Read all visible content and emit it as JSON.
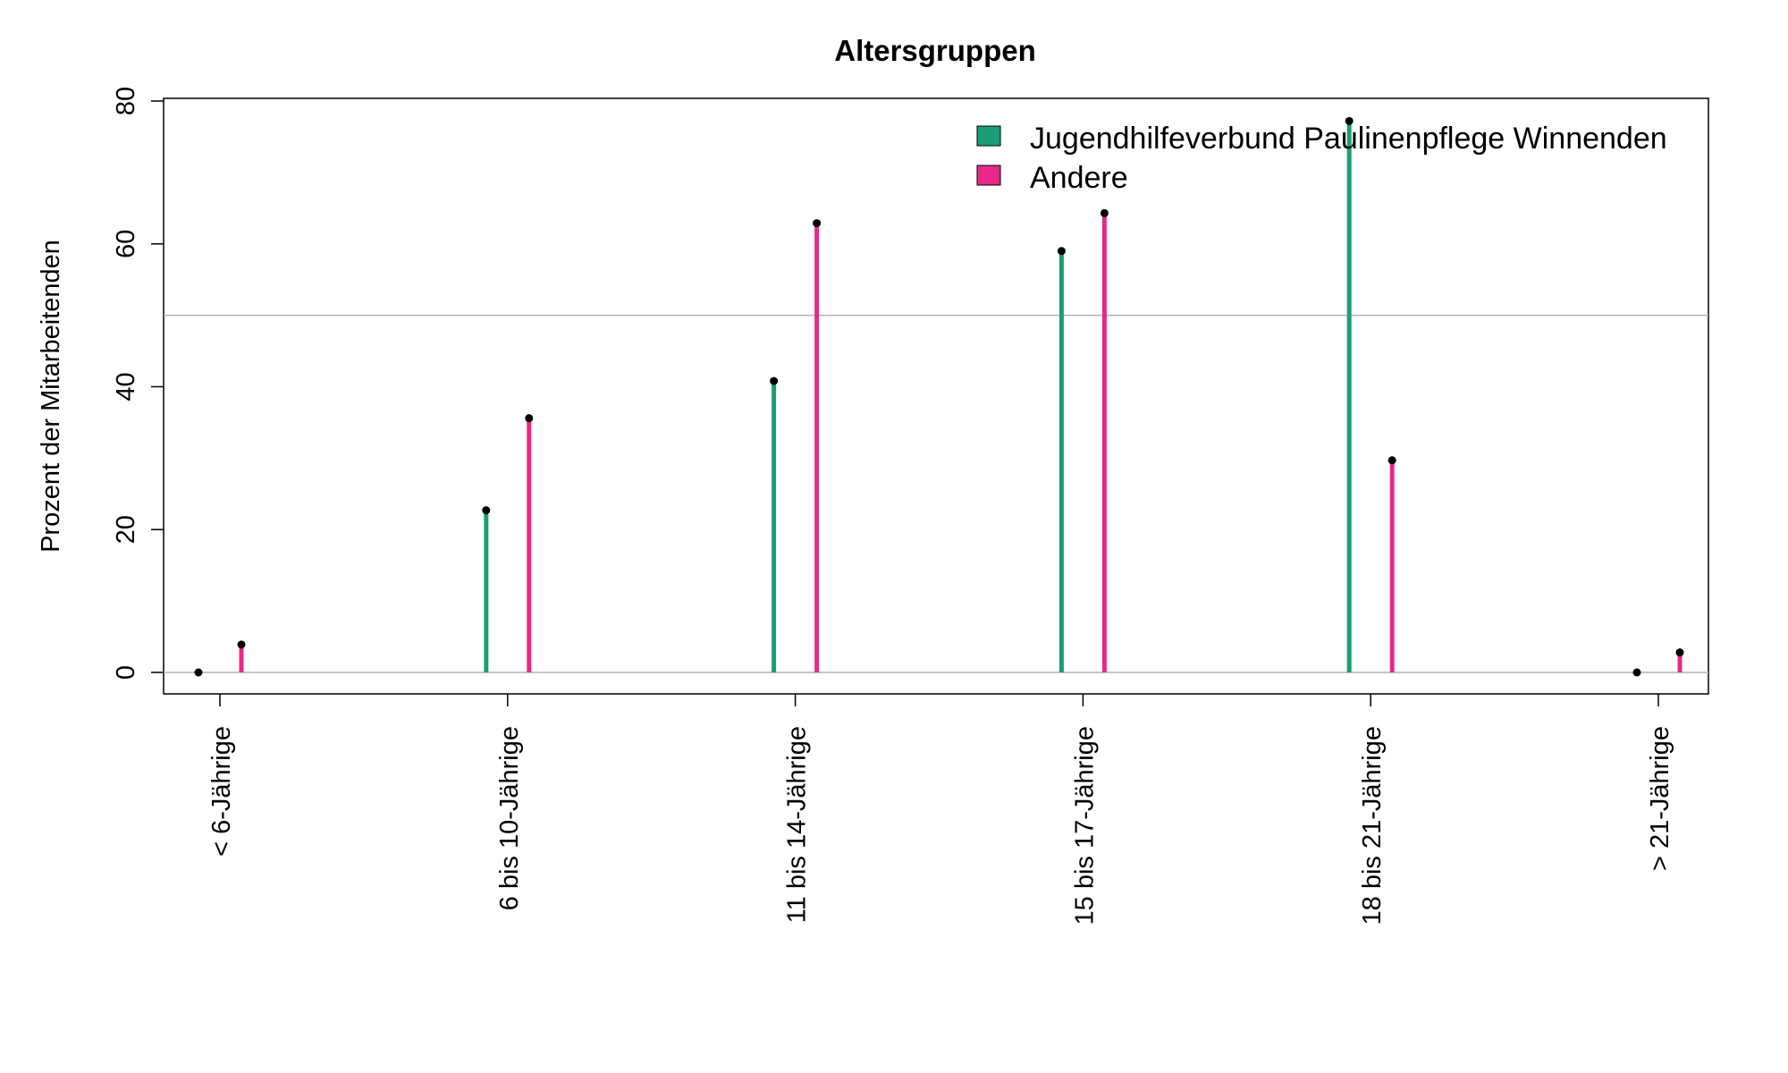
{
  "chart_data": {
    "type": "lollipop",
    "title": "Altersgruppen",
    "ylabel": "Prozent der Mitarbeitenden",
    "xlabel": "",
    "ylim": [
      -3,
      80
    ],
    "yticks": [
      0,
      20,
      40,
      60,
      80
    ],
    "reference_lines": [
      0,
      50
    ],
    "categories": [
      "< 6-Jährige",
      "6 bis 10-Jährige",
      "11 bis 14-Jährige",
      "15 bis 17-Jährige",
      "18 bis 21-Jährige",
      "> 21-Jährige"
    ],
    "series": [
      {
        "name": "Jugendhilfeverbund Paulinenpflege Winnenden",
        "color": "#1b9e77",
        "values": [
          0,
          22.7,
          40.8,
          59.0,
          77.2,
          0
        ]
      },
      {
        "name": "Andere",
        "color": "#e7298a",
        "values": [
          3.9,
          35.6,
          62.9,
          64.3,
          29.7,
          2.8
        ]
      }
    ],
    "legend_position": "top-right",
    "grid": false
  }
}
